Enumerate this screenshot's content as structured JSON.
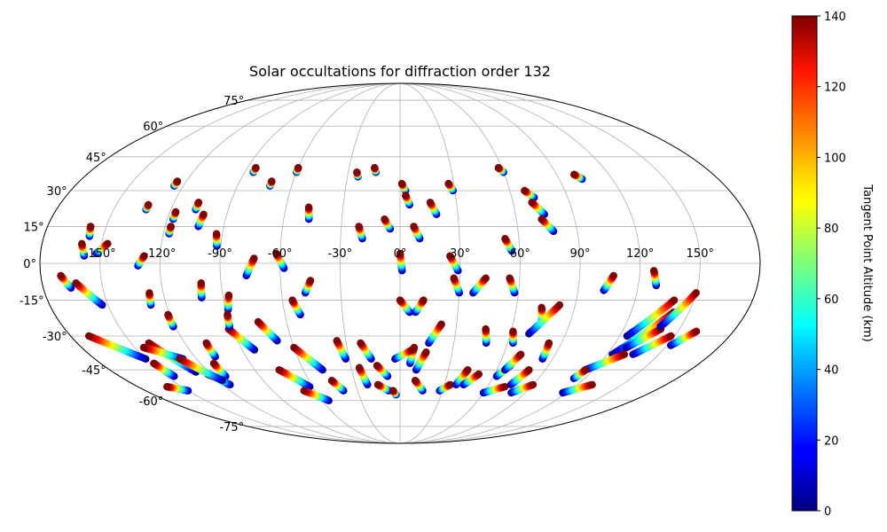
{
  "chart_data": {
    "type": "scatter",
    "projection": "mollweide",
    "title": "Solar occultations for diffraction order 132",
    "longitude_ticks": [
      {
        "value": -150,
        "label": "-150°"
      },
      {
        "value": -120,
        "label": "-120°"
      },
      {
        "value": -90,
        "label": "-90°"
      },
      {
        "value": -60,
        "label": "-60°"
      },
      {
        "value": -30,
        "label": "-30°"
      },
      {
        "value": 0,
        "label": "0°"
      },
      {
        "value": 30,
        "label": "30°"
      },
      {
        "value": 60,
        "label": "60°"
      },
      {
        "value": 90,
        "label": "90°"
      },
      {
        "value": 120,
        "label": "120°"
      },
      {
        "value": 150,
        "label": "150°"
      }
    ],
    "latitude_ticks": [
      {
        "value": 75,
        "label": "75°"
      },
      {
        "value": 60,
        "label": "60°"
      },
      {
        "value": 45,
        "label": "45°"
      },
      {
        "value": 30,
        "label": "30°"
      },
      {
        "value": 15,
        "label": "15°"
      },
      {
        "value": 0,
        "label": "0°"
      },
      {
        "value": -15,
        "label": "-15°"
      },
      {
        "value": -30,
        "label": "-30°"
      },
      {
        "value": -45,
        "label": "-45°"
      },
      {
        "value": -60,
        "label": "-60°"
      },
      {
        "value": -75,
        "label": "-75°"
      }
    ],
    "grid": true,
    "colorbar": {
      "label": "Tangent Point Altitude (km)",
      "range": [
        0,
        140
      ],
      "colormap": "jet",
      "ticks": [
        0,
        20,
        40,
        60,
        80,
        100,
        120,
        140
      ]
    },
    "tracks": [
      {
        "start": [
          -170,
          -5
        ],
        "end": [
          -166,
          -10
        ]
      },
      {
        "start": [
          -163,
          -8
        ],
        "end": [
          -153,
          -17
        ]
      },
      {
        "start": [
          -160,
          8
        ],
        "end": [
          -158,
          3
        ]
      },
      {
        "start": [
          -158,
          15
        ],
        "end": [
          -157,
          11
        ]
      },
      {
        "start": [
          -147,
          8
        ],
        "end": [
          -152,
          4
        ]
      },
      {
        "start": [
          -133,
          24
        ],
        "end": [
          -133,
          22
        ]
      },
      {
        "start": [
          -125,
          34
        ],
        "end": [
          -125,
          32
        ]
      },
      {
        "start": [
          -128,
          3
        ],
        "end": [
          -131,
          -1
        ]
      },
      {
        "start": [
          -127,
          -12
        ],
        "end": [
          -128,
          -17
        ]
      },
      {
        "start": [
          -121,
          -21
        ],
        "end": [
          -121,
          -26
        ]
      },
      {
        "start": [
          -117,
          21
        ],
        "end": [
          -117,
          18
        ]
      },
      {
        "start": [
          -117,
          15
        ],
        "end": [
          -117,
          12
        ]
      },
      {
        "start": [
          -107,
          25
        ],
        "end": [
          -107,
          22
        ]
      },
      {
        "start": [
          -102,
          20
        ],
        "end": [
          -103,
          15
        ]
      },
      {
        "start": [
          -85,
          40
        ],
        "end": [
          -85,
          38
        ]
      },
      {
        "start": [
          -72,
          34
        ],
        "end": [
          -72,
          32
        ]
      },
      {
        "start": [
          -60,
          40
        ],
        "end": [
          -60,
          38
        ]
      },
      {
        "start": [
          -93,
          12
        ],
        "end": [
          -92,
          7
        ]
      },
      {
        "start": [
          -73,
          2
        ],
        "end": [
          -77,
          -5
        ]
      },
      {
        "start": [
          -62,
          4
        ],
        "end": [
          -58,
          -2
        ]
      },
      {
        "start": [
          -48,
          23
        ],
        "end": [
          -47,
          18
        ]
      },
      {
        "start": [
          -45,
          -7
        ],
        "end": [
          -48,
          -12
        ]
      },
      {
        "start": [
          -55,
          -15
        ],
        "end": [
          -52,
          -21
        ]
      },
      {
        "start": [
          -75,
          -24
        ],
        "end": [
          -68,
          -32
        ]
      },
      {
        "start": [
          -35,
          -32
        ],
        "end": [
          -32,
          -40
        ]
      },
      {
        "start": [
          -92,
          -27
        ],
        "end": [
          -83,
          -36
        ]
      },
      {
        "start": [
          -100,
          -8
        ],
        "end": [
          -101,
          -14
        ]
      },
      {
        "start": [
          -87,
          -13
        ],
        "end": [
          -89,
          -19
        ]
      },
      {
        "start": [
          -90,
          -21
        ],
        "end": [
          -91,
          -26
        ]
      },
      {
        "start": [
          -108,
          -33
        ],
        "end": [
          -108,
          -39
        ]
      },
      {
        "start": [
          -112,
          -42
        ],
        "end": [
          -112,
          -48
        ]
      },
      {
        "start": [
          -122,
          -47
        ],
        "end": [
          -115,
          -52
        ]
      },
      {
        "start": [
          -140,
          -33
        ],
        "end": [
          -128,
          -46
        ]
      },
      {
        "start": [
          -148,
          -42
        ],
        "end": [
          -145,
          -48
        ]
      },
      {
        "start": [
          -170,
          -30
        ],
        "end": [
          -150,
          -40
        ]
      },
      {
        "start": [
          -145,
          -35
        ],
        "end": [
          -128,
          -40
        ]
      },
      {
        "start": [
          -130,
          -40
        ],
        "end": [
          -117,
          -50
        ]
      },
      {
        "start": [
          -160,
          -53
        ],
        "end": [
          -150,
          -55
        ]
      },
      {
        "start": [
          -75,
          -45
        ],
        "end": [
          -62,
          -53
        ]
      },
      {
        "start": [
          -60,
          -35
        ],
        "end": [
          -48,
          -45
        ]
      },
      {
        "start": [
          -68,
          -55
        ],
        "end": [
          -55,
          -60
        ]
      },
      {
        "start": [
          -45,
          -50
        ],
        "end": [
          -40,
          -55
        ]
      },
      {
        "start": [
          -25,
          38
        ],
        "end": [
          -24,
          36
        ]
      },
      {
        "start": [
          -15,
          40
        ],
        "end": [
          -14,
          38
        ]
      },
      {
        "start": [
          -21,
          15
        ],
        "end": [
          -19,
          10
        ]
      },
      {
        "start": [
          -8,
          18
        ],
        "end": [
          -5,
          14
        ]
      },
      {
        "start": [
          -22,
          -33
        ],
        "end": [
          -17,
          -40
        ]
      },
      {
        "start": [
          -25,
          -44
        ],
        "end": [
          -22,
          -52
        ]
      },
      {
        "start": [
          -14,
          -43
        ],
        "end": [
          -8,
          -48
        ]
      },
      {
        "start": [
          -15,
          -52
        ],
        "end": [
          -8,
          -55
        ]
      },
      {
        "start": [
          -5,
          -55
        ],
        "end": [
          -3,
          -57
        ]
      },
      {
        "start": [
          0,
          4
        ],
        "end": [
          1,
          -3
        ]
      },
      {
        "start": [
          1,
          33
        ],
        "end": [
          3,
          30
        ]
      },
      {
        "start": [
          3,
          28
        ],
        "end": [
          5,
          24
        ]
      },
      {
        "start": [
          7,
          15
        ],
        "end": [
          10,
          10
        ]
      },
      {
        "start": [
          0,
          -15
        ],
        "end": [
          5,
          -20
        ]
      },
      {
        "start": [
          12,
          -15
        ],
        "end": [
          8,
          -20
        ]
      },
      {
        "start": [
          22,
          -25
        ],
        "end": [
          16,
          -33
        ]
      },
      {
        "start": [
          8,
          -35
        ],
        "end": [
          6,
          -42
        ]
      },
      {
        "start": [
          15,
          -37
        ],
        "end": [
          10,
          -45
        ]
      },
      {
        "start": [
          7,
          -36
        ],
        "end": [
          -3,
          -40
        ]
      },
      {
        "start": [
          10,
          -50
        ],
        "end": [
          16,
          -55
        ]
      },
      {
        "start": [
          16,
          25
        ],
        "end": [
          19,
          20
        ]
      },
      {
        "start": [
          27,
          33
        ],
        "end": [
          29,
          30
        ]
      },
      {
        "start": [
          25,
          3
        ],
        "end": [
          29,
          -3
        ]
      },
      {
        "start": [
          27,
          -6
        ],
        "end": [
          30,
          -12
        ]
      },
      {
        "start": [
          43,
          -6
        ],
        "end": [
          37,
          -12
        ]
      },
      {
        "start": [
          34,
          -52
        ],
        "end": [
          28,
          -55
        ]
      },
      {
        "start": [
          42,
          -45
        ],
        "end": [
          38,
          -52
        ]
      },
      {
        "start": [
          50,
          -47
        ],
        "end": [
          43,
          -52
        ]
      },
      {
        "start": [
          46,
          -27
        ],
        "end": [
          48,
          -33
        ]
      },
      {
        "start": [
          53,
          10
        ],
        "end": [
          56,
          5
        ]
      },
      {
        "start": [
          55,
          -6
        ],
        "end": [
          58,
          -12
        ]
      },
      {
        "start": [
          58,
          40
        ],
        "end": [
          60,
          38
        ]
      },
      {
        "start": [
          61,
          -28
        ],
        "end": [
          63,
          -33
        ]
      },
      {
        "start": [
          68,
          30
        ],
        "end": [
          72,
          27
        ]
      },
      {
        "start": [
          70,
          25
        ],
        "end": [
          75,
          20
        ]
      },
      {
        "start": [
          73,
          18
        ],
        "end": [
          78,
          13
        ]
      },
      {
        "start": [
          73,
          -18
        ],
        "end": [
          75,
          -24
        ]
      },
      {
        "start": [
          82,
          -17
        ],
        "end": [
          70,
          -29
        ]
      },
      {
        "start": [
          67,
          -43
        ],
        "end": [
          62,
          -48
        ]
      },
      {
        "start": [
          70,
          -38
        ],
        "end": [
          65,
          -45
        ]
      },
      {
        "start": [
          72,
          -53
        ],
        "end": [
          60,
          -56
        ]
      },
      {
        "start": [
          83,
          -33
        ],
        "end": [
          84,
          -40
        ]
      },
      {
        "start": [
          80,
          -45
        ],
        "end": [
          75,
          -52
        ]
      },
      {
        "start": [
          90,
          -52
        ],
        "end": [
          80,
          -56
        ]
      },
      {
        "start": [
          100,
          37
        ],
        "end": [
          103,
          35
        ]
      },
      {
        "start": [
          107,
          -5
        ],
        "end": [
          103,
          -11
        ]
      },
      {
        "start": [
          127,
          -3
        ],
        "end": [
          129,
          -9
        ]
      },
      {
        "start": [
          140,
          -15
        ],
        "end": [
          124,
          -30
        ]
      },
      {
        "start": [
          142,
          -20
        ],
        "end": [
          123,
          -38
        ]
      },
      {
        "start": [
          140,
          -27
        ],
        "end": [
          128,
          -35
        ]
      },
      {
        "start": [
          150,
          -12
        ],
        "end": [
          139,
          -26
        ]
      },
      {
        "start": [
          148,
          -30
        ],
        "end": [
          135,
          -38
        ]
      },
      {
        "start": [
          160,
          -28
        ],
        "end": [
          152,
          -34
        ]
      },
      {
        "start": [
          130,
          -38
        ],
        "end": [
          115,
          -45
        ]
      },
      {
        "start": [
          115,
          -45
        ],
        "end": [
          113,
          -49
        ]
      },
      {
        "start": [
          130,
          -52
        ],
        "end": [
          117,
          -56
        ]
      }
    ]
  }
}
